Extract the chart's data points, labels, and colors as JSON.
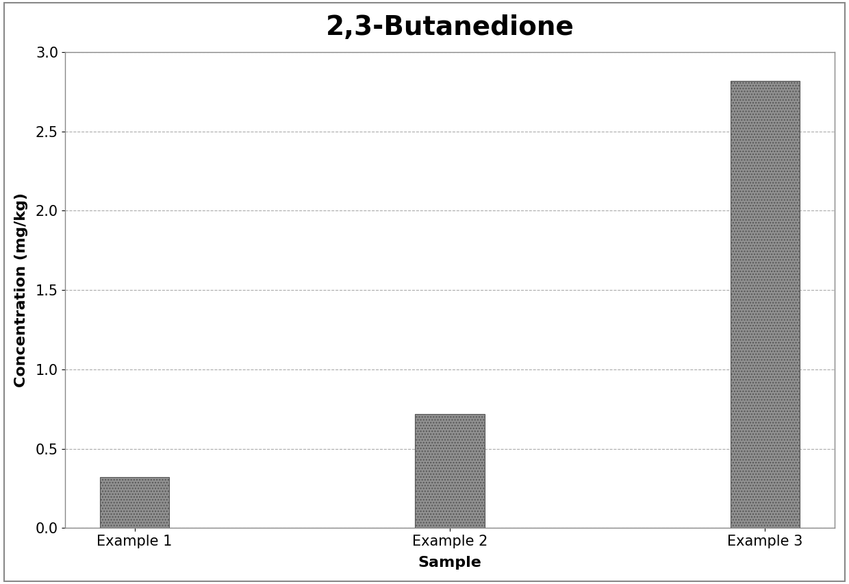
{
  "title": "2,3-Butanedione",
  "categories": [
    "Example 1",
    "Example 2",
    "Example 3"
  ],
  "values": [
    0.32,
    0.72,
    2.82
  ],
  "xlabel": "Sample",
  "ylabel": "Concentration (mg/kg)",
  "ylim": [
    0.0,
    3.0
  ],
  "yticks": [
    0.0,
    0.5,
    1.0,
    1.5,
    2.0,
    2.5,
    3.0
  ],
  "bar_color": "#909090",
  "bar_edgecolor": "#555555",
  "background_color": "#ffffff",
  "title_fontsize": 28,
  "axis_label_fontsize": 16,
  "tick_fontsize": 15,
  "bar_width": 0.22,
  "grid_color": "#aaaaaa",
  "grid_linestyle": "--",
  "grid_linewidth": 0.8,
  "outer_border_color": "#888888",
  "outer_border_linewidth": 1.5
}
